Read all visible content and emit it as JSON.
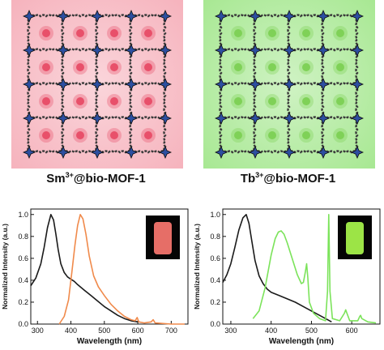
{
  "captions": {
    "left": {
      "element": "Sm",
      "charge": "3+",
      "suffix": "@bio-MOF-1"
    },
    "right": {
      "element": "Tb",
      "charge": "3+",
      "suffix": "@bio-MOF-1"
    }
  },
  "colors": {
    "sm_glow": "#f6b3bd",
    "sm_dot": "#e8506a",
    "tb_glow": "#a8e893",
    "tb_dot": "#7fd157",
    "excitation_line": "#1a1a1a",
    "sm_emission": "#f08a4b",
    "tb_emission": "#7be35a",
    "sm_vial": "#f2746d",
    "tb_vial": "#a4f04a"
  },
  "chart_data": [
    {
      "type": "line",
      "title": "",
      "xlabel": "Wavelength (nm)",
      "ylabel": "Normalized Intensity (a.u.)",
      "xlim": [
        280,
        750
      ],
      "ylim": [
        0,
        1.05
      ],
      "xticks": [
        300,
        400,
        500,
        600,
        700
      ],
      "yticks": [
        0.0,
        0.2,
        0.4,
        0.6,
        0.8,
        1.0
      ],
      "series": [
        {
          "color": "#1a1a1a",
          "points": [
            [
              280,
              0.35
            ],
            [
              295,
              0.42
            ],
            [
              310,
              0.55
            ],
            [
              320,
              0.7
            ],
            [
              330,
              0.88
            ],
            [
              340,
              1.0
            ],
            [
              348,
              0.95
            ],
            [
              355,
              0.82
            ],
            [
              362,
              0.68
            ],
            [
              370,
              0.55
            ],
            [
              380,
              0.47
            ],
            [
              390,
              0.43
            ],
            [
              400,
              0.41
            ],
            [
              410,
              0.39
            ],
            [
              420,
              0.36
            ],
            [
              440,
              0.31
            ],
            [
              460,
              0.26
            ],
            [
              480,
              0.21
            ],
            [
              500,
              0.16
            ],
            [
              520,
              0.12
            ],
            [
              540,
              0.08
            ],
            [
              560,
              0.05
            ],
            [
              580,
              0.03
            ],
            [
              600,
              0.02
            ]
          ]
        },
        {
          "color": "#f08a4b",
          "points": [
            [
              365,
              0.0
            ],
            [
              380,
              0.07
            ],
            [
              393,
              0.22
            ],
            [
              403,
              0.48
            ],
            [
              412,
              0.72
            ],
            [
              420,
              0.9
            ],
            [
              428,
              1.0
            ],
            [
              436,
              0.96
            ],
            [
              445,
              0.82
            ],
            [
              455,
              0.62
            ],
            [
              468,
              0.44
            ],
            [
              482,
              0.34
            ],
            [
              500,
              0.26
            ],
            [
              520,
              0.18
            ],
            [
              540,
              0.12
            ],
            [
              560,
              0.07
            ],
            [
              580,
              0.04
            ],
            [
              592,
              0.03
            ],
            [
              598,
              0.06
            ],
            [
              603,
              0.02
            ],
            [
              620,
              0.01
            ],
            [
              640,
              0.02
            ],
            [
              646,
              0.04
            ],
            [
              652,
              0.01
            ],
            [
              700,
              0.0
            ],
            [
              740,
              0.0
            ]
          ]
        }
      ]
    },
    {
      "type": "line",
      "title": "",
      "xlabel": "Wavelength (nm)",
      "ylabel": "Normalized Intensity (a.u.)",
      "xlim": [
        280,
        670
      ],
      "ylim": [
        0,
        1.05
      ],
      "xticks": [
        300,
        400,
        500,
        600
      ],
      "yticks": [
        0.0,
        0.2,
        0.4,
        0.6,
        0.8,
        1.0
      ],
      "series": [
        {
          "color": "#1a1a1a",
          "points": [
            [
              280,
              0.38
            ],
            [
              290,
              0.45
            ],
            [
              300,
              0.55
            ],
            [
              310,
              0.7
            ],
            [
              320,
              0.86
            ],
            [
              330,
              0.97
            ],
            [
              338,
              1.0
            ],
            [
              345,
              0.92
            ],
            [
              352,
              0.76
            ],
            [
              360,
              0.58
            ],
            [
              370,
              0.44
            ],
            [
              380,
              0.37
            ],
            [
              390,
              0.32
            ],
            [
              400,
              0.29
            ],
            [
              420,
              0.26
            ],
            [
              440,
              0.23
            ],
            [
              460,
              0.2
            ],
            [
              480,
              0.16
            ],
            [
              500,
              0.12
            ],
            [
              520,
              0.08
            ],
            [
              540,
              0.04
            ],
            [
              550,
              0.02
            ]
          ]
        },
        {
          "color": "#7be35a",
          "points": [
            [
              355,
              0.05
            ],
            [
              370,
              0.12
            ],
            [
              385,
              0.33
            ],
            [
              400,
              0.63
            ],
            [
              410,
              0.78
            ],
            [
              418,
              0.84
            ],
            [
              425,
              0.85
            ],
            [
              432,
              0.82
            ],
            [
              440,
              0.74
            ],
            [
              452,
              0.6
            ],
            [
              465,
              0.45
            ],
            [
              475,
              0.37
            ],
            [
              480,
              0.38
            ],
            [
              485,
              0.48
            ],
            [
              488,
              0.55
            ],
            [
              491,
              0.42
            ],
            [
              495,
              0.2
            ],
            [
              505,
              0.1
            ],
            [
              520,
              0.05
            ],
            [
              535,
              0.03
            ],
            [
              540,
              0.3
            ],
            [
              543,
              1.0
            ],
            [
              546,
              0.3
            ],
            [
              552,
              0.05
            ],
            [
              570,
              0.03
            ],
            [
              582,
              0.1
            ],
            [
              585,
              0.13
            ],
            [
              588,
              0.1
            ],
            [
              595,
              0.03
            ],
            [
              615,
              0.03
            ],
            [
              620,
              0.07
            ],
            [
              622,
              0.08
            ],
            [
              625,
              0.05
            ],
            [
              640,
              0.02
            ],
            [
              660,
              0.01
            ]
          ]
        }
      ]
    }
  ]
}
